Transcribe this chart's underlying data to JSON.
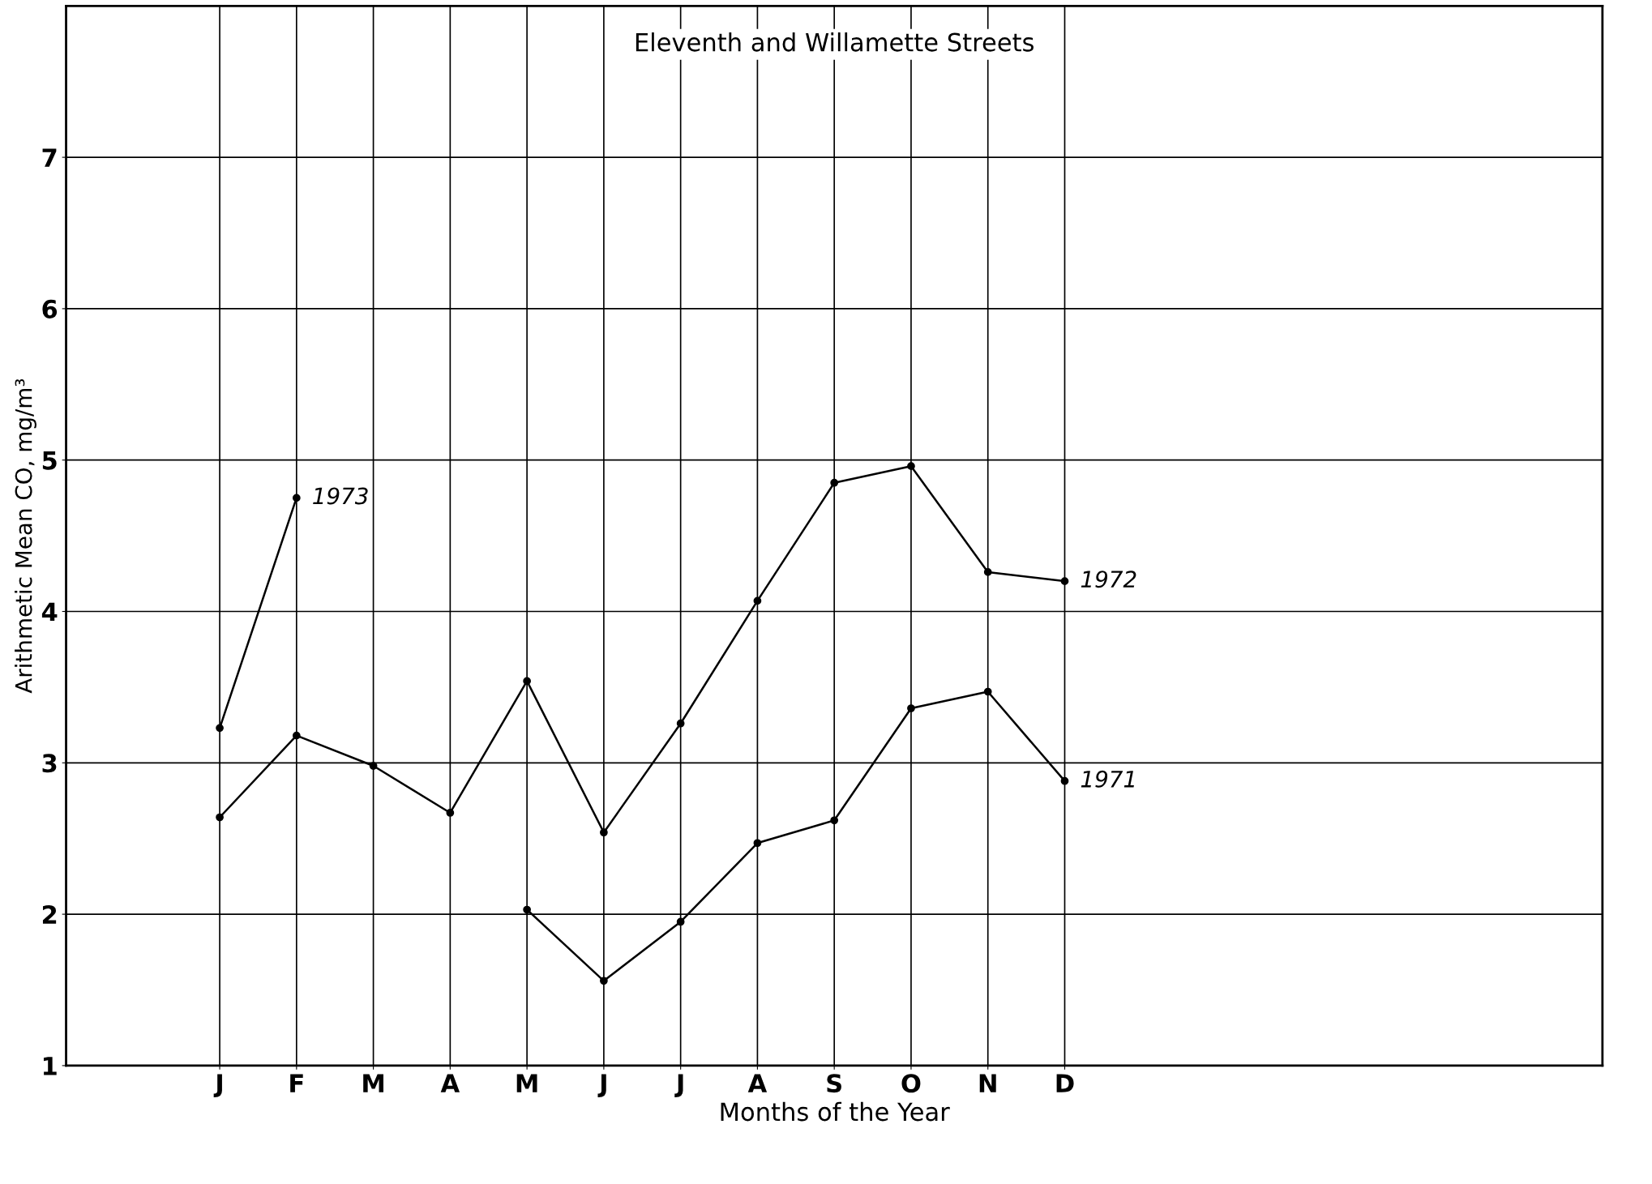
{
  "chart_data": {
    "type": "line",
    "title": "Eleventh and Willamette Streets",
    "xlabel": "Months of the Year",
    "ylabel": "Arithmetic Mean CO, mg/m³",
    "categories": [
      "J",
      "F",
      "M",
      "A",
      "M",
      "J",
      "J",
      "A",
      "S",
      "O",
      "N",
      "D"
    ],
    "series": [
      {
        "name": "1973",
        "color": "#000000",
        "values": [
          3.23,
          4.75,
          null,
          null,
          null,
          null,
          null,
          null,
          null,
          null,
          null,
          null
        ]
      },
      {
        "name": "1972",
        "color": "#000000",
        "values": [
          2.64,
          3.18,
          2.98,
          2.67,
          3.54,
          2.54,
          3.26,
          4.07,
          4.85,
          4.96,
          4.26,
          4.2
        ]
      },
      {
        "name": "1971",
        "color": "#000000",
        "values": [
          null,
          null,
          null,
          null,
          2.03,
          1.56,
          1.95,
          2.47,
          2.62,
          3.36,
          3.47,
          2.88
        ]
      }
    ],
    "ylim": [
      1,
      8
    ],
    "yticks": [
      1,
      2,
      3,
      4,
      5,
      6,
      7
    ],
    "grid": true,
    "marker": "circle",
    "line_style": "solid",
    "legend": false
  }
}
